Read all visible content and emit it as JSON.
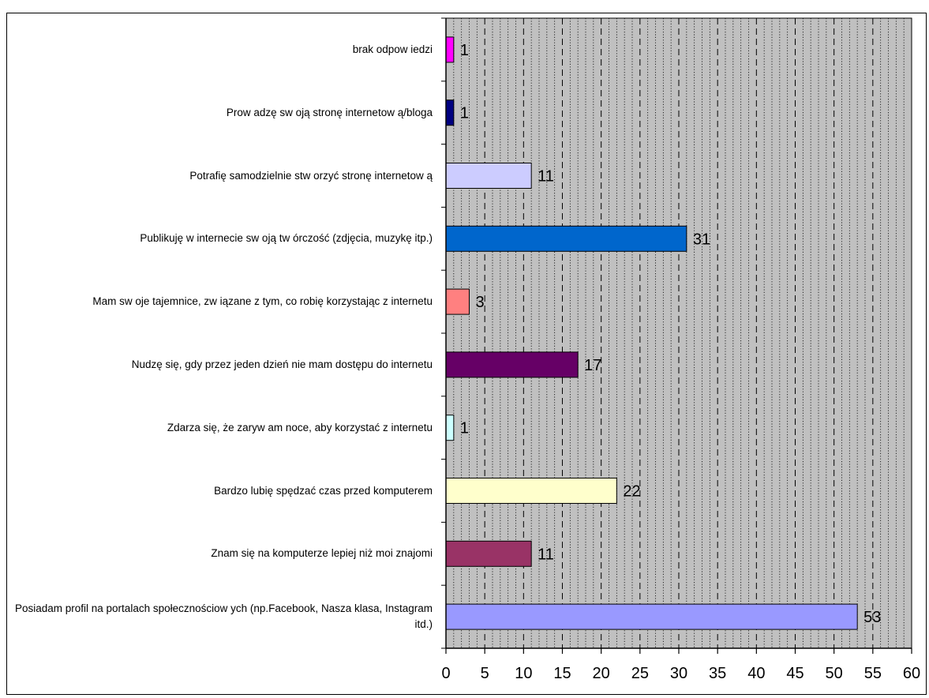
{
  "chart_data": {
    "type": "bar",
    "orientation": "horizontal",
    "categories": [
      "brak odpow iedzi",
      "Prow adzę sw oją stronę internetow ą/bloga",
      "Potrafię samodzielnie stw orzyć stronę internetow ą",
      "Publikuję w  internecie sw oją tw órczość (zdjęcia, muzykę itp.)",
      "Mam sw oje tajemnice, zw iązane z tym, co robię korzystając z internetu",
      "Nudzę się, gdy przez jeden dzień nie mam dostępu do internetu",
      "Zdarza się, że zaryw am noce, aby korzystać z internetu",
      "Bardzo lubię spędzać czas przed komputerem",
      "Znam się na komputerze lepiej niż moi znajomi",
      "Posiadam profil na portalach społecznościow ych (np.Facebook, Nasza klasa, Instagram itd.)"
    ],
    "values": [
      1,
      1,
      11,
      31,
      3,
      17,
      1,
      22,
      11,
      53
    ],
    "data_labels": [
      "1",
      "1",
      "11",
      "31",
      "3",
      "17",
      "1",
      "22",
      "11",
      "53"
    ],
    "colors": [
      "#ff00ff",
      "#000080",
      "#ccccff",
      "#0066cc",
      "#ff8080",
      "#660066",
      "#ccffff",
      "#ffffcc",
      "#993366",
      "#9999ff"
    ],
    "xlim": [
      0,
      60
    ],
    "xticks": [
      0,
      5,
      10,
      15,
      20,
      25,
      30,
      35,
      40,
      45,
      50,
      55,
      60
    ],
    "xtick_labels": [
      "0",
      "5",
      "10",
      "15",
      "20",
      "25",
      "30",
      "35",
      "40",
      "45",
      "50",
      "55",
      "60"
    ],
    "title": "",
    "xlabel": "",
    "ylabel": "",
    "grid": true,
    "legend": "none",
    "plot_background": "#c0c0c0"
  }
}
